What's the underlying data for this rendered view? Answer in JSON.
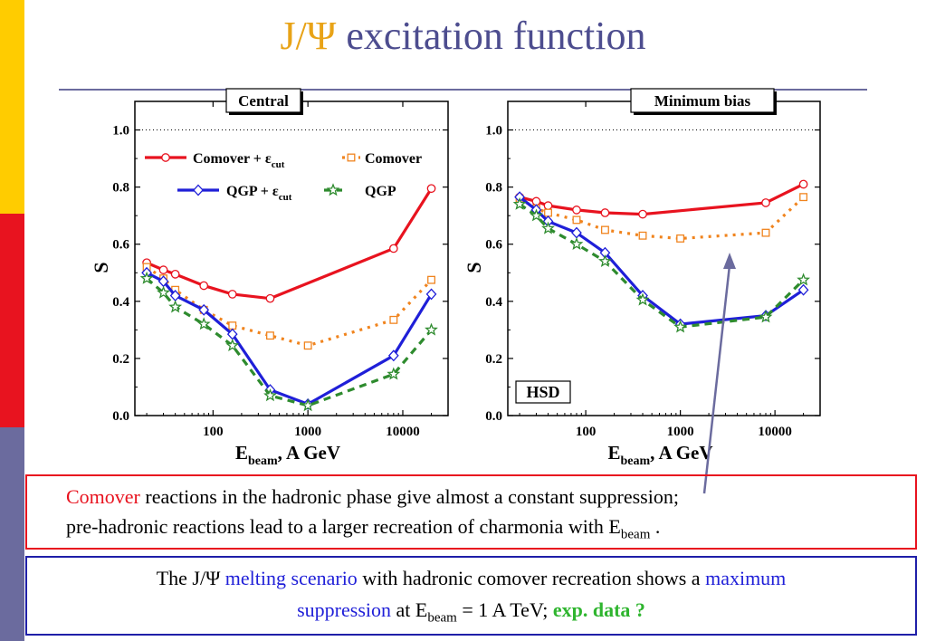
{
  "slide": {
    "title_symbol": "J/Ψ",
    "title_rest": " excitation function",
    "side_bar_colors": [
      "#ffcc00",
      "#e8131f",
      "#6b6b9e"
    ]
  },
  "chart_data": [
    {
      "type": "line",
      "panel_label": "Central",
      "ylabel": "S",
      "xlabel": "E",
      "xlabel_sub": "beam",
      "xlabel_rest": ",  A GeV",
      "xscale": "log",
      "xlim": [
        15,
        30000
      ],
      "ylim": [
        0.0,
        1.1
      ],
      "yticks": [
        "0.0",
        "0.2",
        "0.4",
        "0.6",
        "0.8",
        "1.0"
      ],
      "xticks": [
        "100",
        "1000",
        "10000"
      ],
      "reference_line_y": 1.0,
      "legend": {
        "placement": "top",
        "entries": [
          {
            "label": "Comover + ε",
            "sub": "cut"
          },
          {
            "label": "Comover",
            "sub": ""
          },
          {
            "label": "QGP + ε",
            "sub": "cut"
          },
          {
            "label": "QGP",
            "sub": ""
          }
        ]
      },
      "series": [
        {
          "name": "Comover + εcut",
          "color": "#e8131f",
          "style": "solid",
          "marker": "circle",
          "x": [
            20,
            30,
            40,
            80,
            160,
            400,
            8000,
            20000
          ],
          "y": [
            0.535,
            0.51,
            0.495,
            0.455,
            0.425,
            0.41,
            0.585,
            0.795
          ]
        },
        {
          "name": "Comover",
          "color": "#f0841e",
          "style": "dotted",
          "marker": "square",
          "x": [
            20,
            30,
            40,
            80,
            160,
            400,
            1000,
            8000,
            20000
          ],
          "y": [
            0.52,
            0.48,
            0.44,
            0.37,
            0.315,
            0.28,
            0.245,
            0.335,
            0.475
          ]
        },
        {
          "name": "QGP + εcut",
          "color": "#1f1fd8",
          "style": "solid",
          "marker": "diamond",
          "x": [
            20,
            30,
            40,
            80,
            160,
            400,
            1000,
            8000,
            20000
          ],
          "y": [
            0.5,
            0.47,
            0.42,
            0.37,
            0.285,
            0.09,
            0.04,
            0.21,
            0.425
          ]
        },
        {
          "name": "QGP",
          "color": "#2e8b2e",
          "style": "dashed",
          "marker": "star",
          "x": [
            20,
            30,
            40,
            80,
            160,
            400,
            1000,
            8000,
            20000
          ],
          "y": [
            0.48,
            0.43,
            0.38,
            0.32,
            0.245,
            0.07,
            0.035,
            0.145,
            0.3
          ]
        }
      ]
    },
    {
      "type": "line",
      "panel_label": "Minimum bias",
      "annotation": "HSD",
      "ylabel": "S",
      "xlabel": "E",
      "xlabel_sub": "beam",
      "xlabel_rest": ",  A GeV",
      "xscale": "log",
      "xlim": [
        15,
        30000
      ],
      "ylim": [
        0.0,
        1.1
      ],
      "yticks": [
        "0.0",
        "0.2",
        "0.4",
        "0.6",
        "0.8",
        "1.0"
      ],
      "xticks": [
        "100",
        "1000",
        "10000"
      ],
      "reference_line_y": 1.0,
      "series": [
        {
          "name": "Comover + εcut",
          "color": "#e8131f",
          "style": "solid",
          "marker": "circle",
          "x": [
            20,
            30,
            40,
            80,
            160,
            400,
            8000,
            20000
          ],
          "y": [
            0.765,
            0.75,
            0.735,
            0.72,
            0.71,
            0.705,
            0.745,
            0.81
          ]
        },
        {
          "name": "Comover",
          "color": "#f0841e",
          "style": "dotted",
          "marker": "square",
          "x": [
            20,
            30,
            40,
            80,
            160,
            400,
            1000,
            8000,
            20000
          ],
          "y": [
            0.76,
            0.725,
            0.71,
            0.685,
            0.65,
            0.63,
            0.62,
            0.64,
            0.765
          ]
        },
        {
          "name": "QGP + εcut",
          "color": "#1f1fd8",
          "style": "solid",
          "marker": "diamond",
          "x": [
            20,
            30,
            40,
            80,
            160,
            400,
            1000,
            8000,
            20000
          ],
          "y": [
            0.765,
            0.72,
            0.68,
            0.64,
            0.57,
            0.42,
            0.32,
            0.35,
            0.44
          ]
        },
        {
          "name": "QGP",
          "color": "#2e8b2e",
          "style": "dashed",
          "marker": "star",
          "x": [
            20,
            30,
            40,
            80,
            160,
            400,
            1000,
            8000,
            20000
          ],
          "y": [
            0.74,
            0.7,
            0.655,
            0.6,
            0.54,
            0.405,
            0.31,
            0.345,
            0.475
          ]
        }
      ],
      "arrow": {
        "from": [
          0.0,
          0.0
        ],
        "color": "#6b6b9e"
      }
    }
  ],
  "text_boxes": {
    "box1": {
      "line1_red": "Comover",
      "line1_rest": " reactions in the hadronic phase give almost a constant suppression;",
      "line2_main": "pre-hadronic reactions lead to a larger recreation of charmonia with E",
      "line2_sub": "beam",
      "line2_end": " ."
    },
    "box2": {
      "line1_a": "The J/Ψ ",
      "line1_blue": "melting scenario",
      "line1_b": " with hadronic comover recreation shows a ",
      "line1_blue2": "maximum",
      "line2_blue": "suppression",
      "line2_a": " at E",
      "line2_sub": "beam",
      "line2_b": " = 1 A TeV;    ",
      "line2_green": "exp. data ?"
    }
  }
}
